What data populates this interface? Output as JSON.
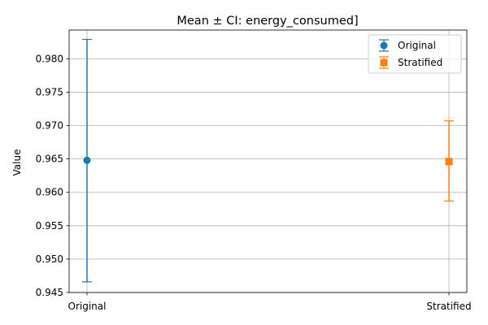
{
  "chart_data": {
    "type": "scatter",
    "title": "Mean ± CI: energy_consumed]",
    "xlabel": "",
    "ylabel": "Value",
    "categories": [
      "Original",
      "Stratified"
    ],
    "ylim": [
      0.945,
      0.9843
    ],
    "yticks": [
      0.945,
      0.95,
      0.955,
      0.96,
      0.965,
      0.97,
      0.975,
      0.98
    ],
    "ytick_labels": [
      "0.945",
      "0.950",
      "0.955",
      "0.960",
      "0.965",
      "0.970",
      "0.975",
      "0.980"
    ],
    "grid": true,
    "legend": "top-right",
    "series": [
      {
        "name": "Original",
        "category": "Original",
        "mean": 0.9648,
        "ci_low": 0.9466,
        "ci_high": 0.9829,
        "marker": "circle",
        "color": "#1f77b4"
      },
      {
        "name": "Stratified",
        "category": "Stratified",
        "mean": 0.9646,
        "ci_low": 0.9587,
        "ci_high": 0.9707,
        "marker": "square",
        "color": "#ff7f0e"
      }
    ]
  }
}
